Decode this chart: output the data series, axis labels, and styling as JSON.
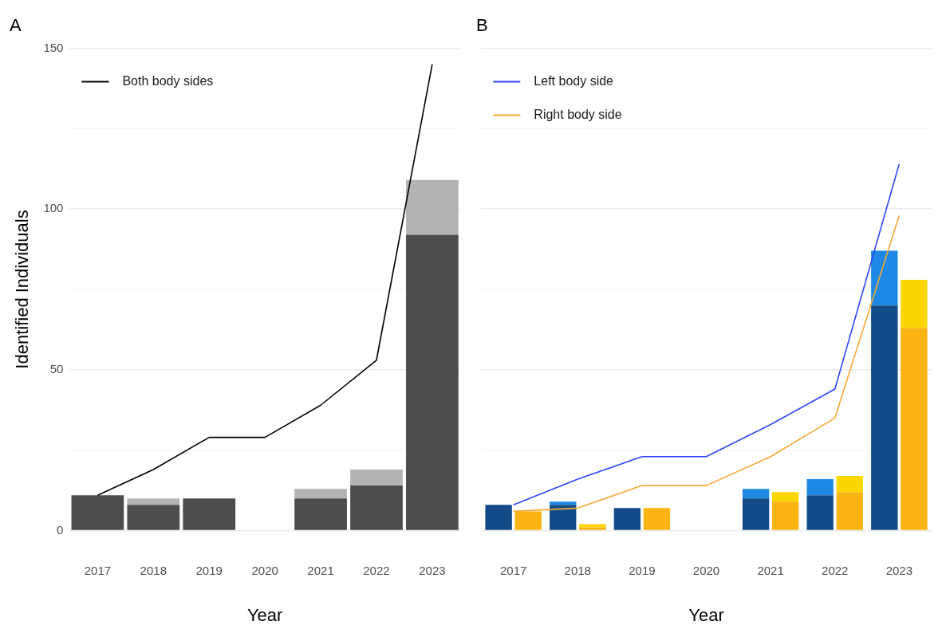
{
  "chart_data": [
    {
      "type": "bar",
      "title": "A",
      "xlabel": "Year",
      "ylabel": "Identified Individuals",
      "categories": [
        "2017",
        "2018",
        "2019",
        "2020",
        "2021",
        "2022",
        "2023"
      ],
      "stacked": true,
      "ylim": [
        0,
        150
      ],
      "yticks": [
        0,
        {
          "value": 25,
          "label": null
        },
        50,
        {
          "value": 75,
          "label": null
        },
        100,
        {
          "value": 125,
          "label": null
        },
        150
      ],
      "grid": "y",
      "legend": "top left",
      "series": [
        {
          "color": "#4d4d4d",
          "values": [
            11,
            8,
            10,
            null,
            10,
            14,
            92
          ]
        },
        {
          "color": "#b3b3b3",
          "values": [
            null,
            2,
            null,
            null,
            3,
            5,
            17
          ]
        },
        {
          "type": "line",
          "name": "Both body sides",
          "color": "#000000",
          "values": [
            11,
            19,
            29,
            29,
            39,
            53,
            145
          ]
        }
      ]
    },
    {
      "type": "bar",
      "title": "B",
      "xlabel": "Year",
      "categories": [
        "2017",
        "2018",
        "2019",
        "2020",
        "2021",
        "2022",
        "2023"
      ],
      "ylim": [
        0,
        150
      ],
      "yticks": [
        0,
        {
          "value": 25,
          "label": null
        },
        50,
        {
          "value": 75,
          "label": null
        },
        100,
        {
          "value": 125,
          "label": null
        },
        150
      ],
      "tick_labels": "x",
      "grid": "y",
      "legend": "top left",
      "series": [
        {
          "color": "#124b87",
          "base": [
            0,
            0,
            0,
            null,
            0,
            0,
            0
          ],
          "values": [
            8,
            8,
            7,
            null,
            10,
            11,
            70
          ]
        },
        {
          "color": "#1e88e5",
          "base": [
            null,
            8,
            null,
            null,
            10,
            11,
            70
          ],
          "values": [
            null,
            1,
            null,
            null,
            3,
            5,
            17
          ]
        },
        {
          "color": "#fbb411",
          "base": [
            0,
            0,
            0,
            null,
            0,
            0,
            0
          ],
          "values": [
            6,
            1,
            7,
            null,
            9,
            12,
            63
          ]
        },
        {
          "color": "#fcd600",
          "base": [
            null,
            1,
            null,
            null,
            9,
            12,
            63
          ],
          "values": [
            null,
            1,
            null,
            null,
            3,
            5,
            15
          ]
        },
        {
          "type": "line",
          "name": "Left body side",
          "color": "#2e43ff",
          "values": [
            8,
            16,
            23,
            23,
            33,
            44,
            114
          ]
        },
        {
          "type": "line",
          "name": "Right body side",
          "color": "#f8a832",
          "values": [
            6,
            7,
            14,
            14,
            23,
            35,
            98
          ]
        }
      ]
    }
  ]
}
